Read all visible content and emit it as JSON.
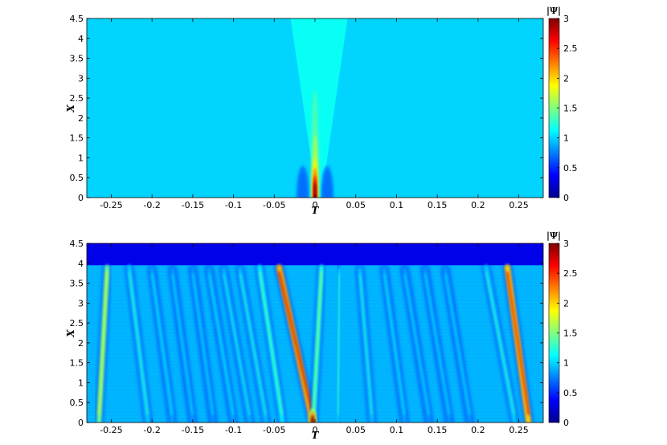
{
  "colors": {
    "background": "#59cfff",
    "colormap_jet": [
      "#00008f",
      "#0000ff",
      "#007fff",
      "#00ffff",
      "#7fff7f",
      "#ffff00",
      "#ff7f00",
      "#ff0000",
      "#7f0000"
    ]
  },
  "chart_data": [
    {
      "type": "heatmap",
      "title": "",
      "xlabel": "T",
      "ylabel": "X",
      "xlim": [
        -0.28,
        0.28
      ],
      "ylim": [
        0,
        4.5
      ],
      "xticks": [
        -0.25,
        -0.2,
        -0.15,
        -0.1,
        -0.05,
        0,
        0.05,
        0.1,
        0.15,
        0.2,
        0.25
      ],
      "xtick_labels": [
        "-0.25",
        "-0.2",
        "-0.15",
        "-0.1",
        "-0.05",
        "0",
        "0.05",
        "0.1",
        "0.15",
        "0.2",
        "0.25"
      ],
      "yticks": [
        0,
        0.5,
        1,
        1.5,
        2,
        2.5,
        3,
        3.5,
        4,
        4.5
      ],
      "ytick_labels": [
        "0",
        "0.5",
        "1",
        "1.5",
        "2",
        "2.5",
        "3",
        "3.5",
        "4",
        "4.5"
      ],
      "colorbar": {
        "title": "|Ψ|",
        "range": [
          0,
          3
        ],
        "ticks": [
          0,
          0.5,
          1,
          1.5,
          2,
          2.5,
          3
        ],
        "tick_labels": [
          "0",
          "0.5",
          "1",
          "1.5",
          "2",
          "2.5",
          "3"
        ]
      },
      "background_value": 1.0,
      "features": [
        {
          "kind": "cone",
          "apex_T": 0.005,
          "apex_X": 0,
          "top_T_range": [
            -0.03,
            0.04
          ],
          "value": 1.15
        },
        {
          "kind": "peak",
          "T": 0.0,
          "X_range": [
            0,
            0.75
          ],
          "max_value": 3.0
        },
        {
          "kind": "dip",
          "T": -0.015,
          "X_range": [
            0,
            0.8
          ],
          "min_value": 0.7
        },
        {
          "kind": "dip",
          "T": 0.015,
          "X_range": [
            0,
            0.8
          ],
          "min_value": 0.7
        }
      ]
    },
    {
      "type": "heatmap",
      "title": "",
      "xlabel": "T",
      "ylabel": "X",
      "xlim": [
        -0.28,
        0.28
      ],
      "ylim": [
        0,
        4.5
      ],
      "xticks": [
        -0.25,
        -0.2,
        -0.15,
        -0.1,
        -0.05,
        0,
        0.05,
        0.1,
        0.15,
        0.2,
        0.25
      ],
      "xtick_labels": [
        "-0.25",
        "-0.2",
        "-0.15",
        "-0.1",
        "-0.05",
        "0",
        "0.05",
        "0.1",
        "0.15",
        "0.2",
        "0.25"
      ],
      "yticks": [
        0,
        0.5,
        1,
        1.5,
        2,
        2.5,
        3,
        3.5,
        4,
        4.5
      ],
      "ytick_labels": [
        "0",
        "0.5",
        "1",
        "1.5",
        "2",
        "2.5",
        "3",
        "3.5",
        "4",
        "4.5"
      ],
      "colorbar": {
        "title": "|Ψ|",
        "range": [
          0,
          3
        ],
        "ticks": [
          0,
          0.5,
          1,
          1.5,
          2,
          2.5,
          3
        ],
        "tick_labels": [
          "0",
          "0.5",
          "1",
          "1.5",
          "2",
          "2.5",
          "3"
        ]
      },
      "background_value": 0.9,
      "top_band": {
        "X_from": 3.95,
        "value": 0.3
      },
      "streaks": [
        {
          "T_top": -0.255,
          "T_bottom": -0.265,
          "X_top": 3.9,
          "max_value": 1.9
        },
        {
          "T_top": -0.228,
          "T_bottom": -0.205,
          "X_top": 3.9,
          "max_value": 1.3
        },
        {
          "T_top": -0.2,
          "T_bottom": -0.175,
          "X_top": 3.85,
          "max_value": 1.15
        },
        {
          "T_top": -0.175,
          "T_bottom": -0.15,
          "X_top": 3.85,
          "max_value": 1.1
        },
        {
          "T_top": -0.15,
          "T_bottom": -0.125,
          "X_top": 3.85,
          "max_value": 1.1
        },
        {
          "T_top": -0.13,
          "T_bottom": -0.1,
          "X_top": 3.85,
          "max_value": 1.15
        },
        {
          "T_top": -0.112,
          "T_bottom": -0.08,
          "X_top": 3.85,
          "max_value": 1.2
        },
        {
          "T_top": -0.092,
          "T_bottom": -0.06,
          "X_top": 3.85,
          "max_value": 1.25
        },
        {
          "T_top": -0.068,
          "T_bottom": -0.04,
          "X_top": 3.9,
          "max_value": 1.45
        },
        {
          "T_top": -0.044,
          "T_bottom": -0.003,
          "X_top": 3.9,
          "max_value": 2.8
        },
        {
          "T_top": 0.008,
          "T_bottom": -0.002,
          "X_top": 3.9,
          "max_value": 1.6
        },
        {
          "T_top": 0.03,
          "T_bottom": 0.028,
          "X_top": 3.85,
          "max_value": 1.3
        },
        {
          "T_top": 0.055,
          "T_bottom": 0.07,
          "X_top": 3.85,
          "max_value": 1.25
        },
        {
          "T_top": 0.085,
          "T_bottom": 0.11,
          "X_top": 3.85,
          "max_value": 1.15
        },
        {
          "T_top": 0.11,
          "T_bottom": 0.14,
          "X_top": 3.85,
          "max_value": 1.1
        },
        {
          "T_top": 0.135,
          "T_bottom": 0.165,
          "X_top": 3.85,
          "max_value": 1.1
        },
        {
          "T_top": 0.16,
          "T_bottom": 0.19,
          "X_top": 3.85,
          "max_value": 1.1
        },
        {
          "T_top": 0.21,
          "T_bottom": 0.245,
          "X_top": 3.9,
          "max_value": 1.3
        },
        {
          "T_top": 0.236,
          "T_bottom": 0.262,
          "X_top": 3.9,
          "max_value": 2.7
        }
      ],
      "peak": {
        "T": -0.003,
        "X_range": [
          0,
          0.35
        ],
        "max_value": 3.0
      }
    }
  ]
}
